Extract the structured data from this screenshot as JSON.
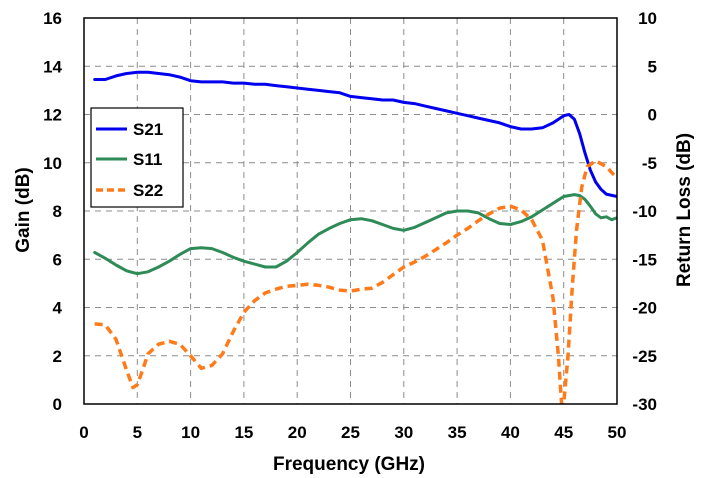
{
  "chart_data": {
    "type": "line",
    "xlabel": "Frequency (GHz)",
    "ylabel": "Gain (dB)",
    "y2label": "Return Loss (dB)",
    "xlim": [
      0,
      50
    ],
    "ylim": [
      0,
      16
    ],
    "y2lim": [
      -30,
      10
    ],
    "x_ticks": [
      "0",
      "5",
      "10",
      "15",
      "20",
      "25",
      "30",
      "35",
      "40",
      "45",
      "50"
    ],
    "y_ticks": [
      "0",
      "2",
      "4",
      "6",
      "8",
      "10",
      "12",
      "14",
      "16"
    ],
    "y2_ticks": [
      "-30",
      "-25",
      "-20",
      "-15",
      "-10",
      "-5",
      "0",
      "5",
      "10"
    ],
    "grid": true,
    "legend_position": "left",
    "series": [
      {
        "name": "S21",
        "axis": "left",
        "color": "#0000ee",
        "dash": "solid",
        "points": [
          [
            1,
            13.45
          ],
          [
            2,
            13.45
          ],
          [
            3,
            13.6
          ],
          [
            4,
            13.7
          ],
          [
            5,
            13.75
          ],
          [
            6,
            13.75
          ],
          [
            7,
            13.7
          ],
          [
            8,
            13.65
          ],
          [
            9,
            13.55
          ],
          [
            10,
            13.4
          ],
          [
            11,
            13.35
          ],
          [
            12,
            13.35
          ],
          [
            13,
            13.35
          ],
          [
            14,
            13.3
          ],
          [
            15,
            13.3
          ],
          [
            16,
            13.25
          ],
          [
            17,
            13.25
          ],
          [
            18,
            13.2
          ],
          [
            19,
            13.15
          ],
          [
            20,
            13.1
          ],
          [
            21,
            13.05
          ],
          [
            22,
            13.0
          ],
          [
            23,
            12.95
          ],
          [
            24,
            12.9
          ],
          [
            25,
            12.75
          ],
          [
            26,
            12.7
          ],
          [
            27,
            12.65
          ],
          [
            28,
            12.6
          ],
          [
            29,
            12.6
          ],
          [
            30,
            12.5
          ],
          [
            31,
            12.45
          ],
          [
            32,
            12.35
          ],
          [
            33,
            12.25
          ],
          [
            34,
            12.15
          ],
          [
            35,
            12.05
          ],
          [
            36,
            11.95
          ],
          [
            37,
            11.85
          ],
          [
            38,
            11.75
          ],
          [
            39,
            11.65
          ],
          [
            40,
            11.5
          ],
          [
            41,
            11.4
          ],
          [
            42,
            11.4
          ],
          [
            43,
            11.45
          ],
          [
            44,
            11.65
          ],
          [
            45,
            11.95
          ],
          [
            45.5,
            12.0
          ],
          [
            46,
            11.8
          ],
          [
            46.5,
            11.2
          ],
          [
            47,
            10.4
          ],
          [
            47.5,
            9.7
          ],
          [
            48,
            9.2
          ],
          [
            48.5,
            8.9
          ],
          [
            49,
            8.7
          ],
          [
            50,
            8.6
          ]
        ]
      },
      {
        "name": "S11",
        "axis": "right",
        "color": "#2e8b57",
        "dash": "solid",
        "points": [
          [
            1,
            -14.3
          ],
          [
            2,
            -14.9
          ],
          [
            3,
            -15.6
          ],
          [
            4,
            -16.2
          ],
          [
            5,
            -16.5
          ],
          [
            6,
            -16.3
          ],
          [
            7,
            -15.8
          ],
          [
            8,
            -15.2
          ],
          [
            9,
            -14.5
          ],
          [
            10,
            -13.9
          ],
          [
            11,
            -13.8
          ],
          [
            12,
            -13.9
          ],
          [
            13,
            -14.3
          ],
          [
            14,
            -14.8
          ],
          [
            15,
            -15.2
          ],
          [
            16,
            -15.5
          ],
          [
            17,
            -15.8
          ],
          [
            18,
            -15.8
          ],
          [
            19,
            -15.2
          ],
          [
            20,
            -14.3
          ],
          [
            21,
            -13.3
          ],
          [
            22,
            -12.4
          ],
          [
            23,
            -11.8
          ],
          [
            24,
            -11.3
          ],
          [
            25,
            -10.9
          ],
          [
            26,
            -10.8
          ],
          [
            27,
            -11.0
          ],
          [
            28,
            -11.4
          ],
          [
            29,
            -11.8
          ],
          [
            30,
            -12.0
          ],
          [
            31,
            -11.7
          ],
          [
            32,
            -11.2
          ],
          [
            33,
            -10.7
          ],
          [
            34,
            -10.2
          ],
          [
            35,
            -10.0
          ],
          [
            36,
            -10.0
          ],
          [
            37,
            -10.2
          ],
          [
            38,
            -10.8
          ],
          [
            39,
            -11.3
          ],
          [
            40,
            -11.4
          ],
          [
            41,
            -11.1
          ],
          [
            42,
            -10.6
          ],
          [
            43,
            -9.9
          ],
          [
            44,
            -9.2
          ],
          [
            45,
            -8.5
          ],
          [
            46,
            -8.3
          ],
          [
            46.5,
            -8.4
          ],
          [
            47,
            -8.8
          ],
          [
            47.5,
            -9.5
          ],
          [
            48,
            -10.3
          ],
          [
            48.5,
            -10.7
          ],
          [
            49,
            -10.6
          ],
          [
            49.5,
            -10.9
          ],
          [
            50,
            -10.7
          ]
        ]
      },
      {
        "name": "S22",
        "axis": "right",
        "color": "#ff7b1a",
        "dash": "dashed",
        "points": [
          [
            1,
            -21.7
          ],
          [
            2,
            -21.8
          ],
          [
            3,
            -23.3
          ],
          [
            4,
            -26.5
          ],
          [
            4.6,
            -28.3
          ],
          [
            5,
            -28.0
          ],
          [
            5.5,
            -26.5
          ],
          [
            6,
            -24.8
          ],
          [
            7,
            -23.8
          ],
          [
            8,
            -23.5
          ],
          [
            9,
            -23.8
          ],
          [
            10,
            -25.0
          ],
          [
            11,
            -26.3
          ],
          [
            12,
            -26.0
          ],
          [
            13,
            -24.8
          ],
          [
            14,
            -22.5
          ],
          [
            15,
            -20.5
          ],
          [
            16,
            -19.3
          ],
          [
            17,
            -18.5
          ],
          [
            18,
            -18.1
          ],
          [
            19,
            -17.8
          ],
          [
            20,
            -17.7
          ],
          [
            21,
            -17.6
          ],
          [
            22,
            -17.7
          ],
          [
            23,
            -17.9
          ],
          [
            24,
            -18.2
          ],
          [
            25,
            -18.3
          ],
          [
            26,
            -18.1
          ],
          [
            27,
            -18.0
          ],
          [
            28,
            -17.4
          ],
          [
            29,
            -16.6
          ],
          [
            30,
            -15.8
          ],
          [
            31,
            -15.3
          ],
          [
            32,
            -14.7
          ],
          [
            33,
            -14.0
          ],
          [
            34,
            -13.3
          ],
          [
            35,
            -12.5
          ],
          [
            36,
            -11.8
          ],
          [
            37,
            -11.0
          ],
          [
            38,
            -10.3
          ],
          [
            39,
            -9.7
          ],
          [
            40,
            -9.5
          ],
          [
            41,
            -9.9
          ],
          [
            42,
            -10.9
          ],
          [
            43,
            -13.0
          ],
          [
            44,
            -19.0
          ],
          [
            44.5,
            -25.0
          ],
          [
            44.8,
            -30.0
          ],
          [
            45,
            -30.0
          ],
          [
            45.4,
            -25.0
          ],
          [
            45.8,
            -18.0
          ],
          [
            46.2,
            -12.0
          ],
          [
            46.7,
            -7.5
          ],
          [
            47.2,
            -5.4
          ],
          [
            48,
            -4.8
          ],
          [
            49,
            -5.4
          ],
          [
            50,
            -6.6
          ]
        ]
      }
    ]
  }
}
